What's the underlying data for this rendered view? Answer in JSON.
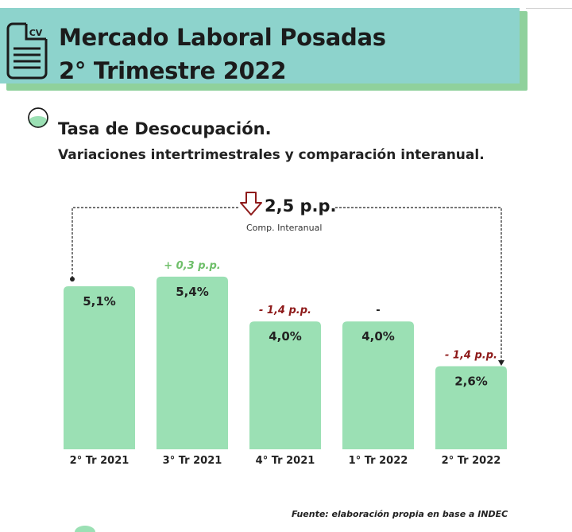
{
  "header": {
    "icon_text": "CV",
    "title_line1": "Mercado Laboral Posadas",
    "title_line2": "2° Trimestre 2022"
  },
  "section": {
    "title": "Tasa de Desocupación.",
    "subtitle": "Variaciones intertrimestrales y comparación interanual."
  },
  "annual_comparison": {
    "value": "2,5 p.p.",
    "label": "Comp. Interanual",
    "direction": "down"
  },
  "footer": {
    "source": "Fuente: elaboración propia en base a INDEC"
  },
  "colors": {
    "header_bg": "#8dd3cc",
    "header_shadow": "#8fd19c",
    "bar": "#9be0b4",
    "positive": "#6fbf6a",
    "negative": "#8e1a1a"
  },
  "chart_data": {
    "type": "bar",
    "categories": [
      "2° Tr 2021",
      "3° Tr 2021",
      "4° Tr 2021",
      "1° Tr 2022",
      "2° Tr 2022"
    ],
    "values": [
      5.1,
      5.4,
      4.0,
      4.0,
      2.6
    ],
    "value_labels": [
      "5,1%",
      "5,4%",
      "4,0%",
      "4,0%",
      "2,6%"
    ],
    "deltas": [
      "",
      "+ 0,3 p.p.",
      "- 1,4 p.p.",
      "-",
      "- 1,4 p.p."
    ],
    "delta_signs": [
      "",
      "pos",
      "neg",
      "neu",
      "neg"
    ],
    "title": "Tasa de Desocupación.",
    "xlabel": "",
    "ylabel": "",
    "ylim": [
      0,
      5.5
    ],
    "grid": false
  }
}
